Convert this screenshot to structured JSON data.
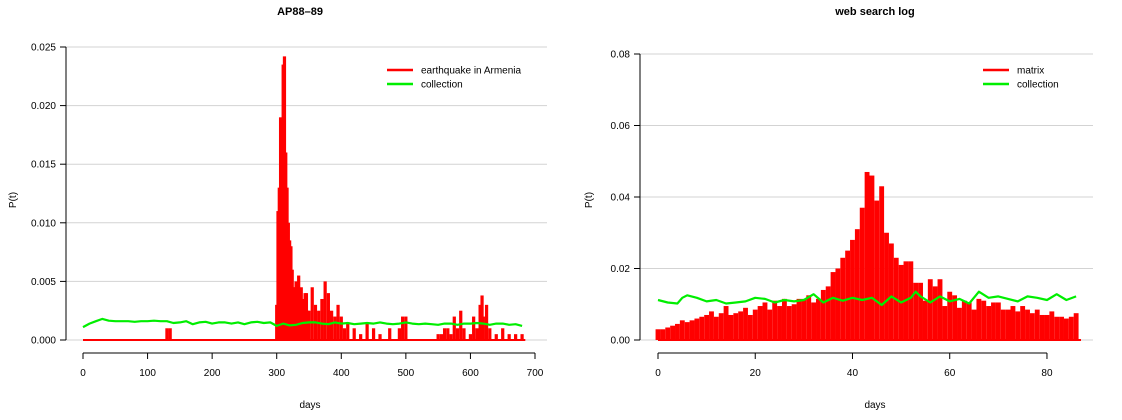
{
  "colors": {
    "event": "#ff0000",
    "collection": "#00ee00",
    "grid": "#d3d3d3",
    "axis": "#000000"
  },
  "chart_data": [
    {
      "type": "bar",
      "title": "AP88–89",
      "xlabel": "days",
      "ylabel": "P(t)",
      "xlim": [
        0,
        700
      ],
      "ylim": [
        0,
        0.025
      ],
      "xticks": [
        0,
        100,
        200,
        300,
        400,
        500,
        600,
        700
      ],
      "yticks": [
        0.0,
        0.005,
        0.01,
        0.015,
        0.02,
        0.025
      ],
      "ytick_labels": [
        "0.000",
        "0.005",
        "0.010",
        "0.015",
        "0.020",
        "0.025"
      ],
      "grid": "horizontal",
      "legend_position": "top-right",
      "legend": [
        "earthquake in Armenia",
        "collection"
      ],
      "bar_width": 5,
      "series": [
        {
          "name": "earthquake in Armenia",
          "kind": "bar",
          "x": [
            130,
            135,
            300,
            302,
            304,
            306,
            308,
            310,
            312,
            314,
            316,
            318,
            320,
            322,
            324,
            326,
            328,
            330,
            332,
            334,
            336,
            338,
            340,
            342,
            344,
            346,
            348,
            350,
            355,
            360,
            365,
            370,
            375,
            380,
            385,
            390,
            395,
            400,
            405,
            410,
            420,
            430,
            440,
            450,
            460,
            475,
            490,
            495,
            500,
            550,
            555,
            560,
            565,
            570,
            575,
            580,
            585,
            590,
            600,
            605,
            610,
            615,
            618,
            620,
            625,
            630,
            640,
            650,
            660,
            670,
            680
          ],
          "values": [
            0.001,
            0.001,
            0.003,
            0.011,
            0.013,
            0.019,
            0.016,
            0.0235,
            0.0242,
            0.016,
            0.013,
            0.01,
            0.0085,
            0.008,
            0.006,
            0.0045,
            0.0045,
            0.005,
            0.003,
            0.0055,
            0.003,
            0.0045,
            0.003,
            0.0035,
            0.004,
            0.004,
            0.0025,
            0.0025,
            0.0045,
            0.003,
            0.0025,
            0.0035,
            0.005,
            0.004,
            0.0025,
            0.002,
            0.003,
            0.002,
            0.001,
            0.0015,
            0.001,
            0.0005,
            0.0015,
            0.001,
            0.0005,
            0.001,
            0.001,
            0.002,
            0.002,
            0.0005,
            0.0005,
            0.001,
            0.001,
            0.0005,
            0.002,
            0.001,
            0.0025,
            0.001,
            0.0005,
            0.002,
            0.001,
            0.003,
            0.0038,
            0.002,
            0.003,
            0.001,
            0.0005,
            0.001,
            0.0005,
            0.0005,
            0.0005
          ]
        },
        {
          "name": "collection",
          "kind": "line",
          "x": [
            0,
            10,
            20,
            30,
            40,
            50,
            60,
            70,
            80,
            90,
            100,
            110,
            120,
            130,
            140,
            150,
            160,
            170,
            180,
            190,
            200,
            210,
            220,
            230,
            240,
            250,
            260,
            270,
            280,
            290,
            300,
            310,
            320,
            330,
            340,
            350,
            360,
            370,
            380,
            390,
            400,
            410,
            420,
            430,
            440,
            450,
            460,
            470,
            480,
            490,
            500,
            510,
            520,
            530,
            540,
            550,
            560,
            570,
            580,
            590,
            600,
            610,
            620,
            630,
            640,
            650,
            660,
            670,
            680
          ],
          "values": [
            0.0011,
            0.0014,
            0.0016,
            0.0018,
            0.00165,
            0.0016,
            0.0016,
            0.0016,
            0.00155,
            0.0016,
            0.0016,
            0.00165,
            0.0016,
            0.0016,
            0.00145,
            0.0015,
            0.0016,
            0.00135,
            0.0015,
            0.00155,
            0.0014,
            0.0015,
            0.0015,
            0.0014,
            0.0015,
            0.00135,
            0.0015,
            0.00155,
            0.00145,
            0.0015,
            0.0012,
            0.0014,
            0.00125,
            0.0013,
            0.00145,
            0.0015,
            0.0015,
            0.0014,
            0.00135,
            0.0015,
            0.0014,
            0.00145,
            0.00135,
            0.0014,
            0.00145,
            0.0014,
            0.0015,
            0.0014,
            0.00135,
            0.0014,
            0.0015,
            0.0014,
            0.00135,
            0.0014,
            0.00135,
            0.0013,
            0.0014,
            0.0014,
            0.0013,
            0.0014,
            0.0014,
            0.00145,
            0.0014,
            0.0013,
            0.0014,
            0.0014,
            0.0013,
            0.00135,
            0.0012
          ]
        }
      ]
    },
    {
      "type": "bar",
      "title": "web search log",
      "xlabel": "days",
      "ylabel": "P(t)",
      "xlim": [
        0,
        87
      ],
      "ylim": [
        0,
        0.08
      ],
      "xticks": [
        0,
        20,
        40,
        60,
        80
      ],
      "yticks": [
        0.0,
        0.02,
        0.04,
        0.06,
        0.08
      ],
      "ytick_labels": [
        "0.00",
        "0.02",
        "0.04",
        "0.06",
        "0.08"
      ],
      "grid": "horizontal",
      "legend_position": "top-right",
      "legend": [
        "matrix",
        "collection"
      ],
      "bar_width": 1,
      "series": [
        {
          "name": "matrix",
          "kind": "bar",
          "x": [
            0,
            1,
            2,
            3,
            4,
            5,
            6,
            7,
            8,
            9,
            10,
            11,
            12,
            13,
            14,
            15,
            16,
            17,
            18,
            19,
            20,
            21,
            22,
            23,
            24,
            25,
            26,
            27,
            28,
            29,
            30,
            31,
            32,
            33,
            34,
            35,
            36,
            37,
            38,
            39,
            40,
            41,
            42,
            43,
            44,
            45,
            46,
            47,
            48,
            49,
            50,
            51,
            52,
            53,
            54,
            55,
            56,
            57,
            58,
            59,
            60,
            61,
            62,
            63,
            64,
            65,
            66,
            67,
            68,
            69,
            70,
            71,
            72,
            73,
            74,
            75,
            76,
            77,
            78,
            79,
            80,
            81,
            82,
            83,
            84,
            85,
            86
          ],
          "values": [
            0.003,
            0.003,
            0.0035,
            0.004,
            0.0045,
            0.0055,
            0.005,
            0.0055,
            0.006,
            0.0065,
            0.007,
            0.008,
            0.0065,
            0.0075,
            0.0095,
            0.007,
            0.0075,
            0.008,
            0.009,
            0.007,
            0.0085,
            0.0095,
            0.0105,
            0.0085,
            0.011,
            0.0095,
            0.0115,
            0.0095,
            0.01,
            0.0115,
            0.0115,
            0.0125,
            0.0105,
            0.0115,
            0.014,
            0.015,
            0.019,
            0.02,
            0.023,
            0.025,
            0.028,
            0.031,
            0.037,
            0.047,
            0.046,
            0.039,
            0.043,
            0.03,
            0.027,
            0.023,
            0.021,
            0.022,
            0.022,
            0.016,
            0.016,
            0.011,
            0.017,
            0.015,
            0.017,
            0.0095,
            0.0135,
            0.0125,
            0.009,
            0.011,
            0.0105,
            0.0085,
            0.0115,
            0.011,
            0.0095,
            0.0105,
            0.0105,
            0.0085,
            0.0085,
            0.0095,
            0.008,
            0.0095,
            0.0085,
            0.0075,
            0.0085,
            0.007,
            0.007,
            0.008,
            0.0065,
            0.0065,
            0.006,
            0.0065,
            0.0075
          ]
        },
        {
          "name": "collection",
          "kind": "line",
          "x": [
            0,
            2,
            4,
            5,
            6,
            8,
            10,
            12,
            14,
            16,
            18,
            20,
            22,
            24,
            26,
            28,
            30,
            32,
            34,
            36,
            38,
            40,
            42,
            44,
            46,
            48,
            50,
            52,
            53,
            54,
            56,
            58,
            60,
            62,
            64,
            66,
            68,
            70,
            72,
            74,
            76,
            78,
            80,
            82,
            84,
            86
          ],
          "values": [
            0.0112,
            0.0105,
            0.0102,
            0.0118,
            0.0125,
            0.0118,
            0.0108,
            0.0112,
            0.0102,
            0.0105,
            0.0108,
            0.0118,
            0.0115,
            0.0105,
            0.0112,
            0.0108,
            0.0112,
            0.0128,
            0.0105,
            0.0118,
            0.011,
            0.0118,
            0.0112,
            0.0118,
            0.0098,
            0.0122,
            0.0105,
            0.0118,
            0.0135,
            0.0122,
            0.0105,
            0.0122,
            0.0108,
            0.0115,
            0.0102,
            0.0135,
            0.0118,
            0.0122,
            0.0115,
            0.0108,
            0.0122,
            0.0118,
            0.0112,
            0.0128,
            0.0112,
            0.0122
          ]
        }
      ]
    }
  ]
}
